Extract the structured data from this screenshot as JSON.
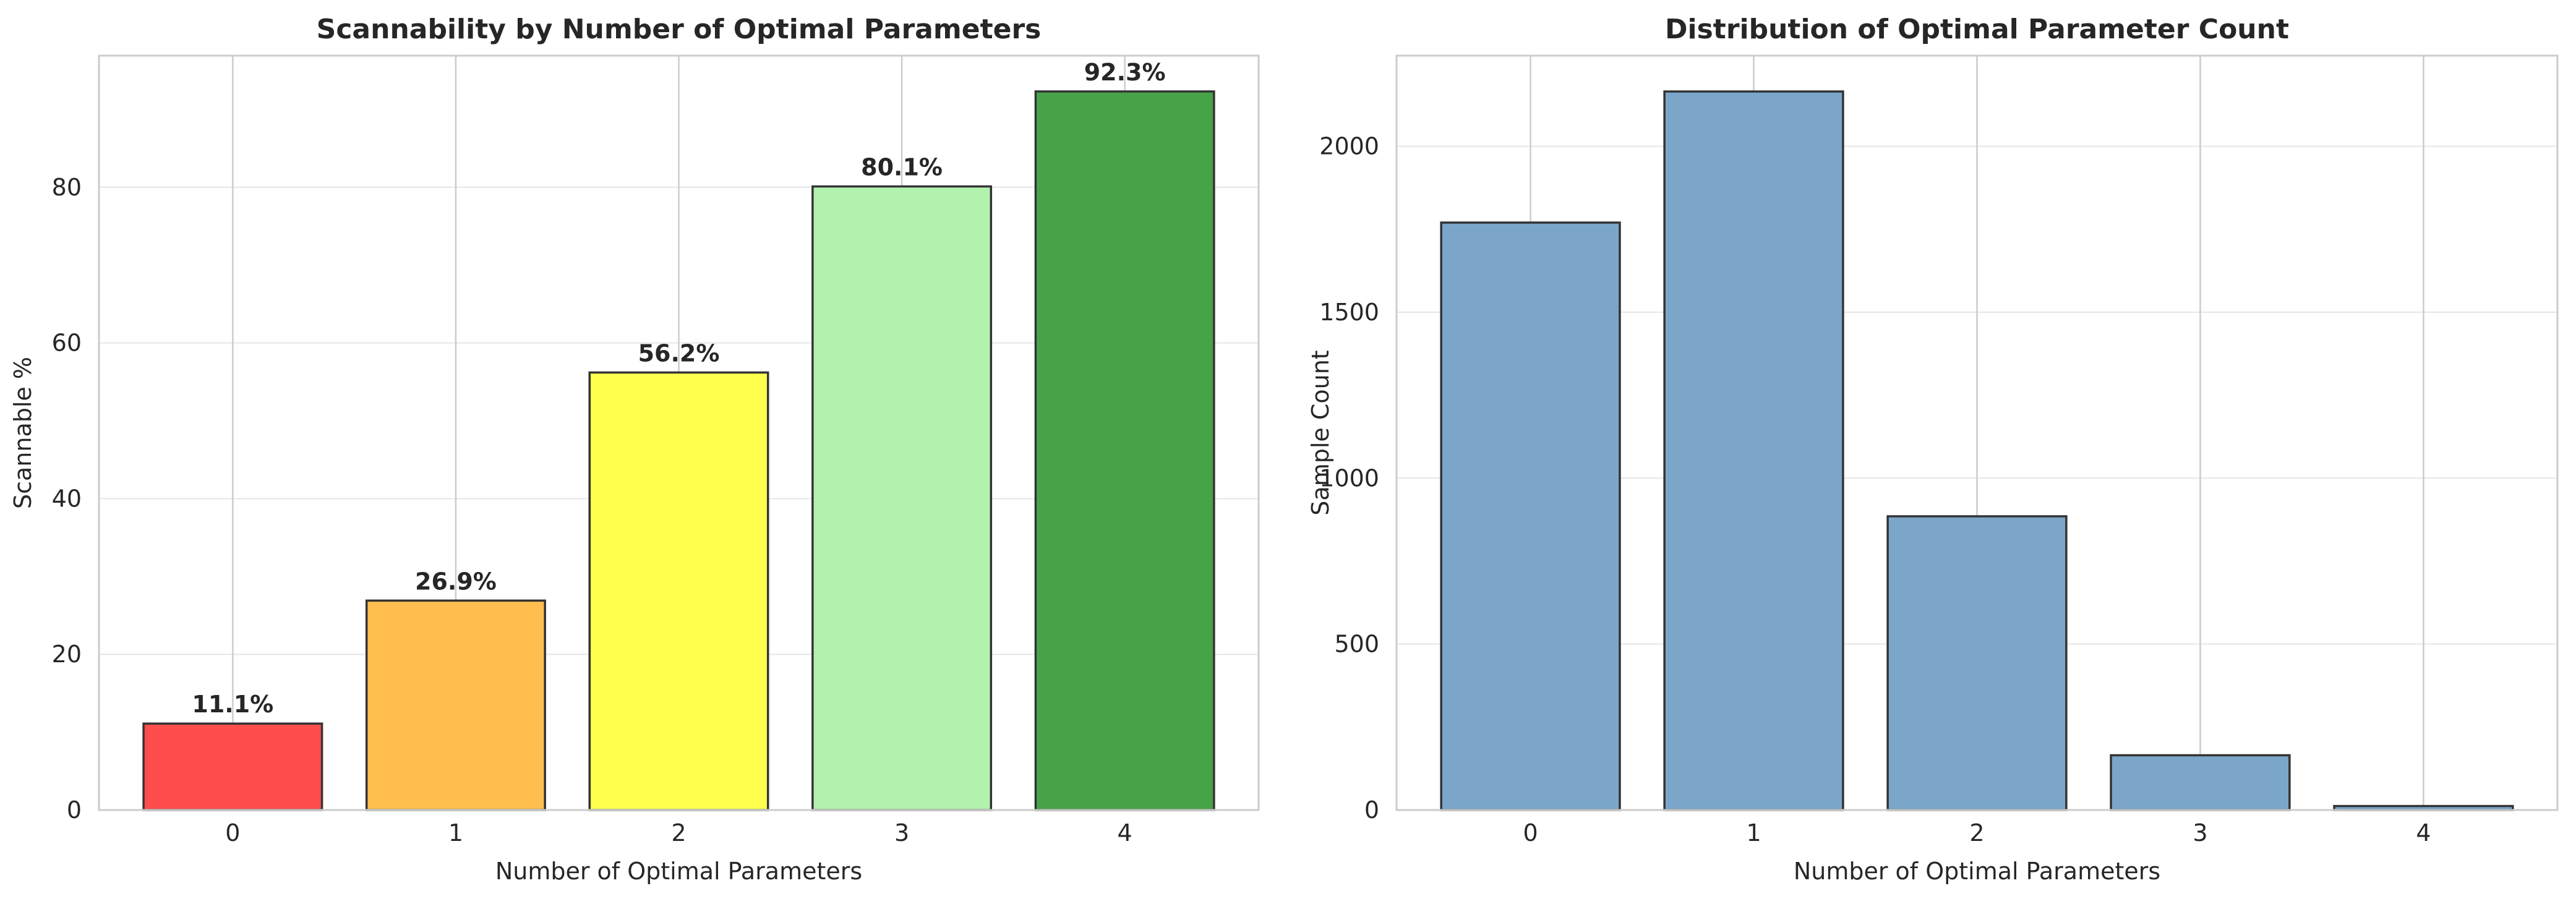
{
  "chart_data": [
    {
      "type": "bar",
      "title": "Scannability by Number of Optimal Parameters",
      "xlabel": "Number of Optimal Parameters",
      "ylabel": "Scannable %",
      "categories": [
        "0",
        "1",
        "2",
        "3",
        "4"
      ],
      "values": [
        11.1,
        26.9,
        56.2,
        80.1,
        92.3
      ],
      "data_labels": [
        "11.1%",
        "26.9%",
        "56.2%",
        "80.1%",
        "92.3%"
      ],
      "bar_colors": [
        "#ff4d4d",
        "#ffbe4d",
        "#ffff4d",
        "#b2f2ae",
        "#47a347"
      ],
      "edge_color": "#333333",
      "ylim": [
        0,
        96.9
      ],
      "yticks": [
        0,
        20,
        40,
        60,
        80
      ],
      "grid": true
    },
    {
      "type": "bar",
      "title": "Distribution of Optimal Parameter Count",
      "xlabel": "Number of Optimal Parameters",
      "ylabel": "Sample Count",
      "categories": [
        "0",
        "1",
        "2",
        "3",
        "4"
      ],
      "values": [
        1770,
        2165,
        885,
        165,
        12
      ],
      "bar_colors": [
        "#7ba6ca",
        "#7ba6ca",
        "#7ba6ca",
        "#7ba6ca",
        "#7ba6ca"
      ],
      "edge_color": "#333333",
      "ylim": [
        0,
        2273
      ],
      "yticks": [
        0,
        500,
        1000,
        1500,
        2000
      ],
      "grid": true
    }
  ]
}
